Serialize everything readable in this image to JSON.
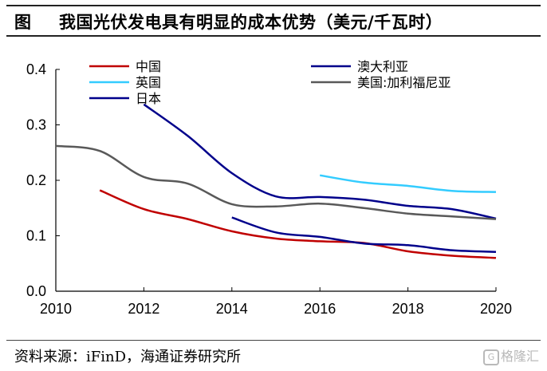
{
  "header": {
    "label": "图",
    "title": "我国光伏发电具有明显的成本优势（美元/千瓦时）"
  },
  "footer": {
    "source": "资料来源：iFinD，海通证券研究所",
    "watermark": "格隆汇"
  },
  "chart_data": {
    "type": "line",
    "title": "我国光伏发电具有明显的成本优势（美元/千瓦时）",
    "xlabel": "",
    "ylabel": "",
    "xlim": [
      2010,
      2020
    ],
    "ylim": [
      0,
      0.4
    ],
    "xticks": [
      2010,
      2012,
      2014,
      2016,
      2018,
      2020
    ],
    "yticks": [
      0.0,
      0.1,
      0.2,
      0.3,
      0.4
    ],
    "ytick_labels": [
      "0.0",
      "0.1",
      "0.2",
      "0.3",
      "0.4"
    ],
    "grid": false,
    "legend_position": "top",
    "series": [
      {
        "name": "中国",
        "color": "#c00000",
        "x": [
          2011,
          2012,
          2013,
          2014,
          2015,
          2016,
          2017,
          2018,
          2019,
          2020
        ],
        "values": [
          0.182,
          0.148,
          0.13,
          0.108,
          0.095,
          0.09,
          0.087,
          0.072,
          0.064,
          0.06
        ]
      },
      {
        "name": "英国",
        "color": "#33ccff",
        "x": [
          2016,
          2017,
          2018,
          2019,
          2020
        ],
        "values": [
          0.209,
          0.196,
          0.19,
          0.181,
          0.179
        ]
      },
      {
        "name": "日本",
        "color": "#00008b",
        "x": [
          2012,
          2013,
          2014,
          2015,
          2016,
          2017,
          2018,
          2019,
          2020
        ],
        "values": [
          0.337,
          0.28,
          0.213,
          0.171,
          0.17,
          0.165,
          0.154,
          0.148,
          0.131
        ]
      },
      {
        "name": "澳大利亚",
        "color": "#00008b",
        "x": [
          2014,
          2015,
          2016,
          2017,
          2018,
          2019,
          2020
        ],
        "values": [
          0.133,
          0.106,
          0.098,
          0.086,
          0.083,
          0.074,
          0.071
        ]
      },
      {
        "name": "美国:加利福尼亚",
        "color": "#595959",
        "x": [
          2010,
          2011,
          2012,
          2013,
          2014,
          2015,
          2016,
          2017,
          2018,
          2019,
          2020
        ],
        "values": [
          0.262,
          0.253,
          0.206,
          0.194,
          0.157,
          0.153,
          0.158,
          0.15,
          0.14,
          0.135,
          0.13
        ]
      }
    ]
  }
}
